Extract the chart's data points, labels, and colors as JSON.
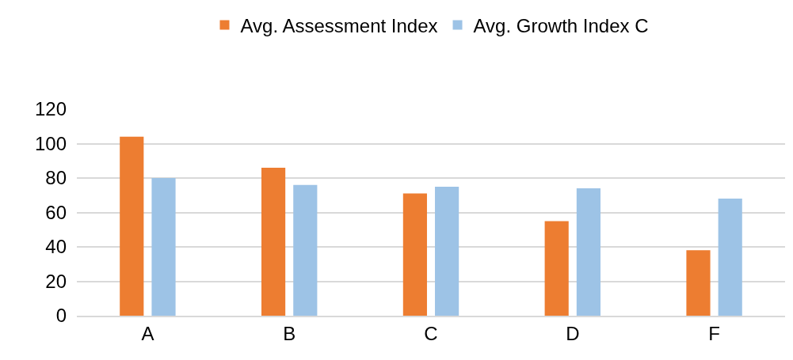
{
  "chart_data": {
    "type": "bar",
    "categories": [
      "A",
      "B",
      "C",
      "D",
      "F"
    ],
    "series": [
      {
        "name": "Avg. Assessment Index",
        "color": "#ed7d31",
        "values": [
          104,
          86,
          71,
          55,
          38
        ]
      },
      {
        "name": "Avg. Growth Index C",
        "color": "#9dc3e6",
        "values": [
          80,
          76,
          75,
          74,
          68
        ]
      }
    ],
    "ylim": [
      0,
      120
    ],
    "yticks": [
      0,
      20,
      40,
      60,
      80,
      100,
      120
    ],
    "grid": "y",
    "legend": "top"
  }
}
